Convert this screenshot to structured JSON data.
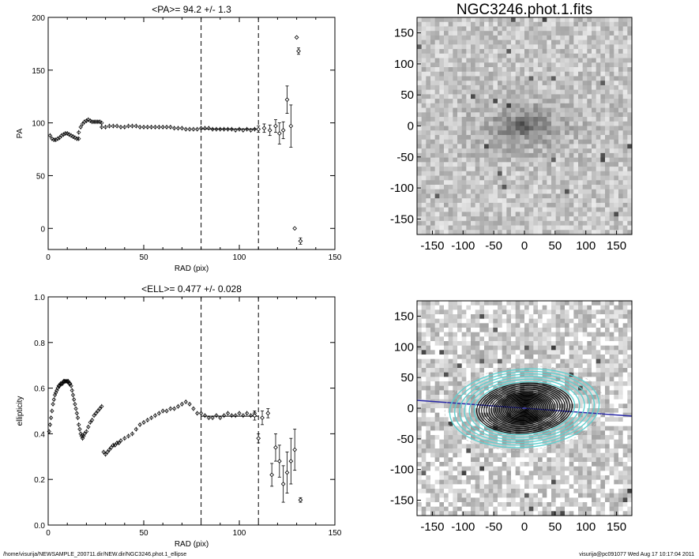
{
  "footer": {
    "path": "/home/visurija/NEWSAMPLE_200711.dir/NEW.dir/NGC3246.phot.1_ellipse",
    "user_stamp": "visurija@pc091077  Wed Aug 17 10:17:04 2011"
  },
  "chart_data": [
    {
      "id": "pa",
      "type": "scatter",
      "title": "<PA>=  94.2 +/-   1.3",
      "xlabel": "RAD (pix)",
      "ylabel": "PA",
      "xlim": [
        0,
        150
      ],
      "ylim": [
        -20,
        200
      ],
      "xticks": [
        0,
        50,
        100,
        150
      ],
      "yticks": [
        0,
        50,
        100,
        150,
        200
      ],
      "vlines": [
        80,
        110
      ],
      "mean_line": {
        "value": 94.2,
        "x": [
          80,
          110
        ]
      },
      "marker_color": "#000000",
      "segments": [
        {
          "x": [
            1,
            2,
            3,
            4,
            5,
            6,
            7,
            8,
            9,
            10,
            11,
            12,
            13,
            14,
            15,
            16
          ],
          "y": [
            88,
            85,
            84,
            84,
            85,
            86,
            88,
            89,
            90,
            90,
            89,
            88,
            87,
            86,
            85,
            85
          ]
        },
        {
          "x": [
            16,
            17,
            18,
            19,
            20,
            21,
            22,
            23,
            24,
            25,
            26,
            27,
            28
          ],
          "y": [
            91,
            96,
            99,
            101,
            102,
            103,
            102,
            101,
            101,
            101,
            101,
            101,
            100
          ]
        },
        {
          "x": [
            28,
            30,
            32,
            34,
            36,
            38,
            40,
            42,
            44,
            46,
            48,
            50,
            52,
            54,
            56,
            58,
            60,
            62,
            64,
            66,
            68,
            70,
            72,
            74,
            76,
            78
          ],
          "y": [
            96,
            96,
            97,
            97,
            97,
            96,
            96,
            97,
            97,
            97,
            96,
            96,
            96,
            96,
            96,
            96,
            96,
            96,
            96,
            95,
            95,
            95,
            94,
            94,
            94,
            94
          ]
        },
        {
          "x": [
            80,
            82,
            84,
            86,
            88,
            90,
            92,
            94,
            96,
            98,
            100,
            102,
            104,
            106,
            108
          ],
          "y": [
            95,
            95,
            95,
            94,
            94,
            94,
            94,
            94,
            94,
            93,
            94,
            93,
            94,
            93,
            94
          ]
        }
      ],
      "errpoints": [
        {
          "x": 110,
          "y": 94,
          "err": 3
        },
        {
          "x": 113,
          "y": 95,
          "err": 4
        },
        {
          "x": 116,
          "y": 93,
          "err": 5
        },
        {
          "x": 119,
          "y": 97,
          "err": 6
        },
        {
          "x": 121,
          "y": 90,
          "err": 10
        },
        {
          "x": 123,
          "y": 93,
          "err": 8
        },
        {
          "x": 125,
          "y": 122,
          "err": 13
        },
        {
          "x": 127,
          "y": 97,
          "err": 20
        },
        {
          "x": 129,
          "y": 0,
          "err": 0
        },
        {
          "x": 130,
          "y": 181,
          "err": 0
        },
        {
          "x": 131,
          "y": 168,
          "err": 3
        },
        {
          "x": 132,
          "y": -12,
          "err": 3
        }
      ]
    },
    {
      "id": "ell",
      "type": "scatter",
      "title": "<ELL>= 0.477 +/-  0.028",
      "xlabel": "RAD (pix)",
      "ylabel": "ellipticity",
      "xlim": [
        0,
        150
      ],
      "ylim": [
        0,
        1
      ],
      "xticks": [
        0,
        50,
        100,
        150
      ],
      "yticks": [
        0,
        0.2,
        0.4,
        0.6,
        0.8,
        1
      ],
      "ytick_labels": [
        "0.0",
        "0.2",
        "0.4",
        "0.6",
        "0.8",
        "1.0"
      ],
      "vlines": [
        80,
        110
      ],
      "mean_line": {
        "value": 0.477,
        "x": [
          80,
          110
        ]
      },
      "marker_color": "#000000",
      "segments": [
        {
          "x": [
            0.5,
            1,
            1.5,
            2,
            2.5,
            3,
            3.5,
            4,
            4.5,
            5,
            5.5,
            6,
            6.5,
            7,
            7.5,
            8,
            8.5,
            9,
            9.5,
            10,
            10.5,
            11,
            11.5,
            12,
            12.5,
            13,
            13.5,
            14,
            14.5,
            15,
            15.5
          ],
          "y": [
            0.41,
            0.44,
            0.47,
            0.5,
            0.53,
            0.55,
            0.57,
            0.58,
            0.59,
            0.6,
            0.61,
            0.61,
            0.62,
            0.62,
            0.62,
            0.63,
            0.63,
            0.63,
            0.63,
            0.63,
            0.63,
            0.62,
            0.62,
            0.61,
            0.59,
            0.57,
            0.55,
            0.53,
            0.51,
            0.49,
            0.47
          ]
        },
        {
          "x": [
            16,
            16.5,
            17,
            17.5,
            18,
            18.5,
            19,
            20,
            21,
            22,
            23,
            24,
            25,
            26,
            27,
            28
          ],
          "y": [
            0.44,
            0.42,
            0.4,
            0.39,
            0.38,
            0.39,
            0.4,
            0.41,
            0.43,
            0.45,
            0.46,
            0.48,
            0.49,
            0.5,
            0.51,
            0.52
          ]
        },
        {
          "x": [
            29,
            30,
            31,
            32,
            33,
            34,
            35,
            36,
            37,
            38,
            40,
            42,
            44,
            46,
            48,
            50,
            52,
            54,
            56,
            58,
            60,
            62,
            64,
            66,
            68,
            70,
            72,
            74,
            76,
            78
          ],
          "y": [
            0.32,
            0.31,
            0.32,
            0.33,
            0.34,
            0.35,
            0.35,
            0.36,
            0.36,
            0.37,
            0.38,
            0.39,
            0.4,
            0.42,
            0.44,
            0.45,
            0.46,
            0.47,
            0.48,
            0.49,
            0.5,
            0.5,
            0.51,
            0.51,
            0.52,
            0.53,
            0.54,
            0.53,
            0.51,
            0.49
          ]
        },
        {
          "x": [
            80,
            82,
            84,
            86,
            88,
            90,
            92,
            94,
            96,
            98,
            100,
            102,
            104,
            106,
            108
          ],
          "y": [
            0.49,
            0.48,
            0.47,
            0.47,
            0.48,
            0.47,
            0.48,
            0.49,
            0.48,
            0.48,
            0.49,
            0.48,
            0.49,
            0.48,
            0.49
          ]
        }
      ],
      "errpoints": [
        {
          "x": 108,
          "y": 0.48,
          "err": 0.02
        },
        {
          "x": 110,
          "y": 0.38,
          "err": 0.02
        },
        {
          "x": 112,
          "y": 0.47,
          "err": 0.03
        },
        {
          "x": 115,
          "y": 0.49,
          "err": 0.02
        },
        {
          "x": 117,
          "y": 0.22,
          "err": 0.05
        },
        {
          "x": 119,
          "y": 0.34,
          "err": 0.06
        },
        {
          "x": 121,
          "y": 0.28,
          "err": 0.07
        },
        {
          "x": 123,
          "y": 0.18,
          "err": 0.08
        },
        {
          "x": 125,
          "y": 0.23,
          "err": 0.09
        },
        {
          "x": 127,
          "y": 0.28,
          "err": 0.1
        },
        {
          "x": 129,
          "y": 0.33,
          "err": 0.09
        },
        {
          "x": 132,
          "y": 0.11,
          "err": 0.01
        }
      ]
    },
    {
      "id": "img1",
      "type": "heatmap",
      "title": "NGC3246.phot.1.fits",
      "xlim": [
        -175,
        175
      ],
      "ylim": [
        -175,
        175
      ],
      "xticks": [
        -150,
        -100,
        -50,
        0,
        50,
        100,
        150
      ],
      "yticks": [
        -150,
        -100,
        -50,
        0,
        50,
        100,
        150
      ],
      "colormap": "gray_inverted",
      "galaxy": {
        "center": [
          0,
          0
        ],
        "pa_deg": 94.2,
        "ellipticity": 0.477,
        "scale_pix": 55
      }
    },
    {
      "id": "img2",
      "type": "heatmap",
      "title": "",
      "xlim": [
        -175,
        175
      ],
      "ylim": [
        -175,
        175
      ],
      "xticks": [
        -150,
        -100,
        -50,
        0,
        50,
        100,
        150
      ],
      "yticks": [
        -150,
        -100,
        -50,
        0,
        50,
        100,
        150
      ],
      "colormap": "gray_inverted_masked",
      "axis_line_color": "#2a2aa8",
      "inner_isophote_color": "#000000",
      "outer_isophote_color": "#5fd0d0",
      "inner_isophotes_sma": [
        5,
        8,
        11,
        14,
        17,
        20,
        23,
        26,
        29,
        32,
        35,
        38,
        41,
        44,
        47,
        50,
        54,
        58,
        62,
        66,
        70,
        74,
        78
      ],
      "outer_isophotes_sma": [
        82,
        90,
        98,
        106,
        114,
        122
      ],
      "faint_isophotes_sma": [
        130
      ],
      "galaxy": {
        "center": [
          0,
          0
        ],
        "pa_deg": 94.2,
        "ellipticity": 0.477,
        "scale_pix": 55
      }
    }
  ]
}
